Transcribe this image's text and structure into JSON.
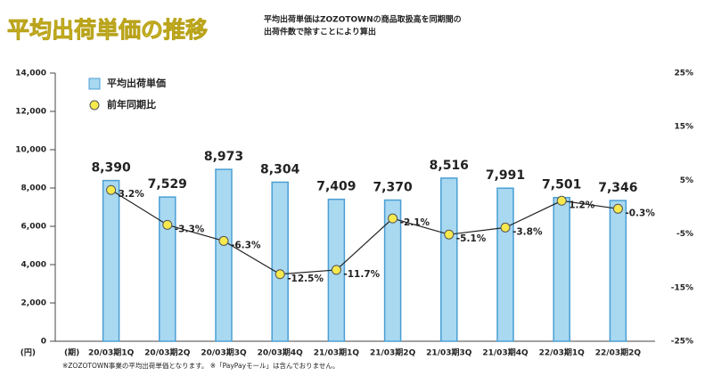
{
  "chart_data": {
    "type": "bar",
    "title": "平均出荷単価の推移",
    "subtitle": [
      "平均出荷単価はZOZOTOWNの商品取扱高を同期間の",
      "出荷件数で除すことにより算出"
    ],
    "footnote": "※ZOZOTOWN事業の平均出荷単価となります。 ※「PayPayモール」は含んでおりません。",
    "y_unit_label": "(円)",
    "x_unit_label": "(期)",
    "categories": [
      "20/03期1Q",
      "20/03期2Q",
      "20/03期3Q",
      "20/03期4Q",
      "21/03期1Q",
      "21/03期2Q",
      "21/03期3Q",
      "21/03期4Q",
      "22/03期1Q",
      "22/03期2Q"
    ],
    "series": [
      {
        "name": "平均出荷単価",
        "type": "bar",
        "color": "#a9d8f1",
        "values": [
          8390,
          7529,
          8973,
          8304,
          7409,
          7370,
          8516,
          7991,
          7501,
          7346
        ],
        "value_labels": [
          "8,390",
          "7,529",
          "8,973",
          "8,304",
          "7,409",
          "7,370",
          "8,516",
          "7,991",
          "7,501",
          "7,346"
        ]
      },
      {
        "name": "前年同期比",
        "type": "line",
        "axis": "y2",
        "color": "#f6e94e",
        "values": [
          3.2,
          -3.3,
          -6.3,
          -12.5,
          -11.7,
          -2.1,
          -5.1,
          -3.8,
          1.2,
          -0.3
        ],
        "value_labels": [
          "3.2%",
          "-3.3%",
          "-6.3%",
          "-12.5%",
          "-11.7%",
          "-2.1%",
          "-5.1%",
          "-3.8%",
          "1.2%",
          "-0.3%"
        ]
      }
    ],
    "ylim": [
      0,
      14000
    ],
    "yticks": [
      0,
      {
        "value": 2000,
        "label": "2,000"
      },
      {
        "value": 4000,
        "label": "4,000"
      },
      {
        "value": 6000,
        "label": "6,000"
      },
      {
        "value": 8000,
        "label": "8,000"
      },
      {
        "value": 10000,
        "label": "10,000"
      },
      {
        "value": 12000,
        "label": "12,000"
      },
      {
        "value": 14000,
        "label": "14,000"
      }
    ],
    "y2lim": [
      -25,
      25
    ],
    "y2ticks": [
      {
        "value": -25,
        "label": "-25%"
      },
      {
        "value": -15,
        "label": "-15%"
      },
      {
        "value": -5,
        "label": "-5%"
      },
      {
        "value": 5,
        "label": "5%"
      },
      {
        "value": 15,
        "label": "15%"
      },
      {
        "value": 25,
        "label": "25%"
      }
    ],
    "legend": "top-left"
  }
}
